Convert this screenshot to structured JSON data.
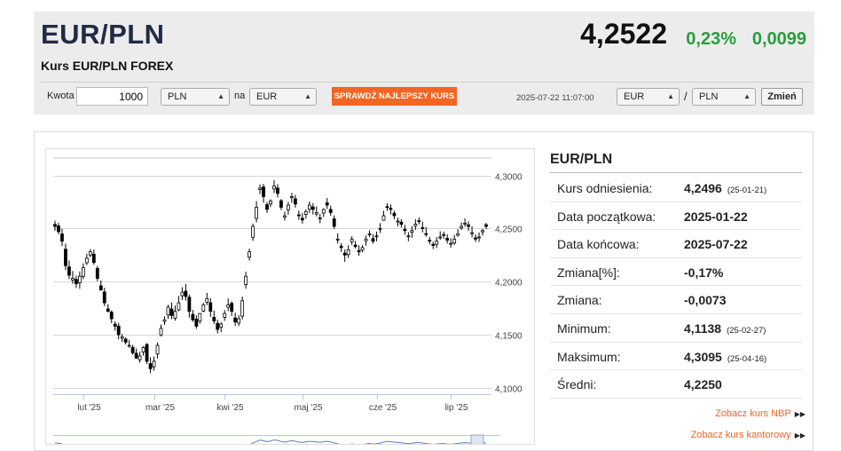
{
  "header": {
    "pair": "EUR/PLN",
    "subtitle": "Kurs EUR/PLN FOREX",
    "price": "4,2522",
    "change_pct": "0,23%",
    "change_abs": "0,0099"
  },
  "converter": {
    "amount_label": "Kwota",
    "amount_value": "1000",
    "from_currency": "PLN",
    "to_label": "na",
    "to_currency": "EUR",
    "button_label": "SPRAWDŹ NAJLEPSZY KURS",
    "timestamp": "2025-07-22 11:07:00",
    "pair_base": "EUR",
    "pair_sep": "/",
    "pair_quote": "PLN",
    "switch_label": "Zmień"
  },
  "chart_data": {
    "type": "candlestick",
    "x_tick_labels": [
      "lut '25",
      "mar '25",
      "kwi '25",
      "maj '25",
      "cze '25",
      "lip '25"
    ],
    "y_tick_labels": [
      "4,3000",
      "4,2500",
      "4,2000",
      "4,1500",
      "4,1000"
    ],
    "y_ticks": [
      4.3,
      4.25,
      4.2,
      4.15,
      4.1
    ],
    "ylim": [
      4.094,
      4.318
    ],
    "closes": [
      4.252,
      4.247,
      4.238,
      4.215,
      4.206,
      4.203,
      4.198,
      4.205,
      4.213,
      4.222,
      4.228,
      4.218,
      4.203,
      4.192,
      4.18,
      4.172,
      4.165,
      4.158,
      4.15,
      4.148,
      4.143,
      4.14,
      4.133,
      4.128,
      4.13,
      4.138,
      4.125,
      4.118,
      4.125,
      4.14,
      4.156,
      4.164,
      4.176,
      4.168,
      4.172,
      4.18,
      4.19,
      4.186,
      4.172,
      4.164,
      4.158,
      4.17,
      4.178,
      4.184,
      4.172,
      4.163,
      4.155,
      4.16,
      4.17,
      4.178,
      4.172,
      4.162,
      4.165,
      4.182,
      4.205,
      4.228,
      4.252,
      4.27,
      4.288,
      4.28,
      4.268,
      4.276,
      4.29,
      4.283,
      4.27,
      4.262,
      4.272,
      4.28,
      4.273,
      4.262,
      4.258,
      4.266,
      4.272,
      4.268,
      4.265,
      4.26,
      4.268,
      4.272,
      4.265,
      4.252,
      4.24,
      4.232,
      4.225,
      4.23,
      4.24,
      4.233,
      4.228,
      4.232,
      4.24,
      4.245,
      4.238,
      4.243,
      4.25,
      4.262,
      4.27,
      4.268,
      4.262,
      4.257,
      4.254,
      4.248,
      4.243,
      4.248,
      4.254,
      4.257,
      4.25,
      4.245,
      4.238,
      4.234,
      4.238,
      4.242,
      4.244,
      4.239,
      4.236,
      4.24,
      4.245,
      4.252,
      4.255,
      4.252,
      4.246,
      4.24,
      4.242,
      4.248,
      4.252
    ],
    "opens": [
      4.2538,
      4.2524,
      4.2448,
      4.2305,
      4.2138,
      4.2016,
      4.2021,
      4.1989,
      4.2049,
      4.2177,
      4.225,
      4.2258,
      4.2124,
      4.196,
      4.1902,
      4.1742,
      4.1712,
      4.1599,
      4.1581,
      4.1467,
      4.1459,
      4.1396,
      4.1381,
      4.1325,
      4.1264,
      4.1337,
      4.1408,
      4.1228,
      4.1198,
      4.1318,
      4.1498,
      4.1626,
      4.1686,
      4.1742,
      4.1655,
      4.1734,
      4.1867,
      4.191,
      4.1853,
      4.1691,
      4.1645,
      4.1628,
      4.1722,
      4.1807,
      4.1801,
      4.1664,
      4.1607,
      4.1571,
      4.1664,
      4.1758,
      4.1795,
      4.1658,
      4.1609,
      4.1674,
      4.1972,
      4.223,
      4.2417,
      4.2594,
      4.2867,
      4.2891,
      4.2724,
      4.2731,
      4.2872,
      4.2881,
      4.2762,
      4.2607,
      4.2676,
      4.279,
      4.2779,
      4.2628,
      4.2596,
      4.2633,
      4.2681,
      4.2703,
      4.2636,
      4.2595,
      4.2645,
      4.2742,
      4.2679,
      4.2591,
      4.2399,
      4.2334,
      4.2268,
      4.2254,
      4.2376,
      4.2344,
      4.2292,
      4.2296,
      4.2384,
      4.2442,
      4.2405,
      4.2426,
      4.2493,
      4.2577,
      4.2706,
      4.269,
      4.2643,
      4.2567,
      4.256,
      4.2492,
      4.2423,
      4.2464,
      4.2526,
      4.2573,
      4.2508,
      4.2451,
      4.2391,
      4.235,
      4.2351,
      4.2416,
      4.2443,
      4.2408,
      4.2359,
      4.2363,
      4.2435,
      4.2505,
      4.2546,
      4.2534,
      4.2456,
      4.2412,
      4.2417,
      4.2468,
      4.2535
    ],
    "highs": [
      4.2573,
      4.2553,
      4.2498,
      4.2358,
      4.2198,
      4.2099,
      4.2056,
      4.2095,
      4.2172,
      4.2262,
      4.2306,
      4.2302,
      4.2147,
      4.2011,
      4.1942,
      4.1788,
      4.1728,
      4.1627,
      4.1613,
      4.1507,
      4.1474,
      4.1449,
      4.1404,
      4.137,
      4.1339,
      4.1394,
      4.1421,
      4.1287,
      4.1295,
      4.1427,
      4.1595,
      4.1673,
      4.1782,
      4.1804,
      4.1775,
      4.1865,
      4.1947,
      4.1979,
      4.1878,
      4.1734,
      4.1682,
      4.1703,
      4.1801,
      4.1894,
      4.1843,
      4.1727,
      4.1641,
      4.1618,
      4.1732,
      4.1841,
      4.1814,
      4.1707,
      4.1683,
      4.1859,
      4.2094,
      4.2311,
      4.2546,
      4.2758,
      4.2915,
      4.2921,
      4.2749,
      4.2775,
      4.2955,
      4.2917,
      4.2777,
      4.2658,
      4.2752,
      4.2835,
      4.2816,
      4.2668,
      4.2646,
      4.2681,
      4.2754,
      4.2739,
      4.2709,
      4.2638,
      4.2688,
      4.2787,
      4.2715,
      4.2623,
      4.2454,
      4.2363,
      4.2301,
      4.2342,
      4.2426,
      4.2383,
      4.2342,
      4.2343,
      4.2434,
      4.2483,
      4.2446,
      4.2471,
      4.255,
      4.2666,
      4.2737,
      4.2727,
      4.2668,
      4.2602,
      4.2588,
      4.2534,
      4.2465,
      4.2523,
      4.2587,
      4.2605,
      4.2565,
      4.2514,
      4.2422,
      4.2376,
      4.2418,
      4.2474,
      4.2471,
      4.2444,
      4.2407,
      4.244,
      4.2494,
      4.2558,
      4.2595,
      4.2568,
      4.2521,
      4.2444,
      4.2463,
      4.2495,
      4.2553
    ],
    "lows": [
      4.2479,
      4.2445,
      4.2334,
      4.2108,
      4.2024,
      4.198,
      4.194,
      4.1932,
      4.2023,
      4.2156,
      4.2228,
      4.216,
      4.2004,
      4.1917,
      4.1769,
      4.1711,
      4.1609,
      4.1538,
      4.1458,
      4.1433,
      4.1409,
      4.1377,
      4.1311,
      4.1271,
      4.1237,
      4.1303,
      4.1224,
      4.1138,
      4.1161,
      4.1277,
      4.1484,
      4.1593,
      4.1649,
      4.1645,
      4.1632,
      4.172,
      4.1827,
      4.1822,
      4.1661,
      4.1621,
      4.1555,
      4.1603,
      4.1713,
      4.1778,
      4.1669,
      4.1601,
      4.1511,
      4.1524,
      4.163,
      4.1722,
      4.1676,
      4.1582,
      4.1581,
      4.1643,
      4.1934,
      4.2198,
      4.2383,
      4.2557,
      4.2823,
      4.2743,
      4.2647,
      4.2701,
      4.2834,
      4.2791,
      4.2673,
      4.2574,
      4.263,
      4.2741,
      4.2697,
      4.2581,
      4.2546,
      4.2593,
      4.2646,
      4.2632,
      4.2615,
      4.2549,
      4.2608,
      4.2684,
      4.2619,
      4.2495,
      4.2359,
      4.2279,
      4.2186,
      4.2223,
      4.2346,
      4.2311,
      4.2243,
      4.2275,
      4.2339,
      4.2419,
      4.2357,
      4.2379,
      4.2458,
      4.2573,
      4.2666,
      4.2631,
      4.2587,
      4.252,
      4.2509,
      4.2442,
      4.238,
      4.2412,
      4.2487,
      4.2539,
      4.2463,
      4.2422,
      4.235,
      4.2306,
      4.2316,
      4.2393,
      4.2404,
      4.2358,
      4.2319,
      4.2344,
      4.2424,
      4.2487,
      4.2516,
      4.2478,
      4.2415,
      4.2373,
      4.2374,
      4.2433,
      4.2494
    ]
  },
  "stats": {
    "title": "EUR/PLN",
    "rows": [
      {
        "label": "Kurs odniesienia:",
        "value": "4,2496",
        "date": "(25-01-21)"
      },
      {
        "label": "Data początkowa:",
        "value": "2025-01-22",
        "date": ""
      },
      {
        "label": "Data końcowa:",
        "value": "2025-07-22",
        "date": ""
      },
      {
        "label": "Zmiana[%]:",
        "value": "-0,17%",
        "date": ""
      },
      {
        "label": "Zmiana:",
        "value": "-0,0073",
        "date": ""
      },
      {
        "label": "Minimum:",
        "value": "4,1138",
        "date": "(25-02-27)"
      },
      {
        "label": "Maksimum:",
        "value": "4,3095",
        "date": "(25-04-16)"
      },
      {
        "label": "Średni:",
        "value": "4,2250",
        "date": ""
      }
    ]
  },
  "links": {
    "nbp": "Zobacz kurs NBP",
    "kantor": "Zobacz kurs kantorowy"
  }
}
